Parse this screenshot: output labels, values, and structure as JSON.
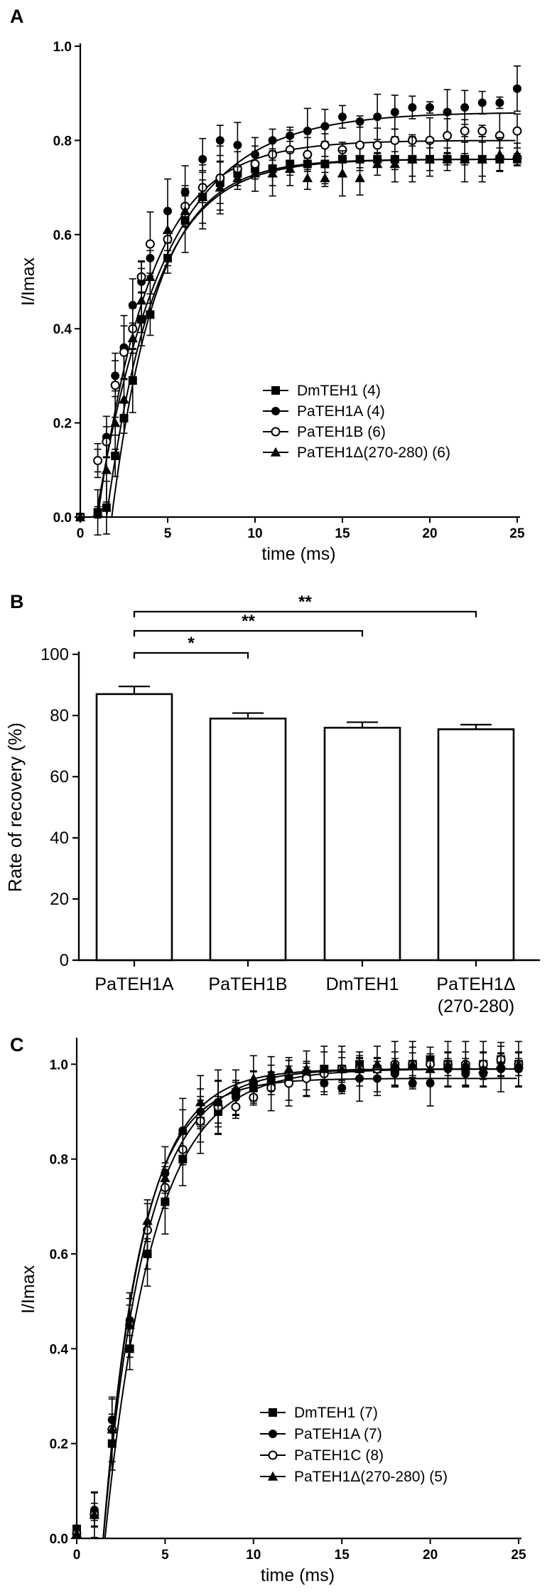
{
  "chart_data": [
    {
      "panel": "A",
      "type": "line",
      "ylabel": "I/Imax",
      "xlabel": "time (ms)",
      "xlim": [
        0,
        25
      ],
      "ylim": [
        0,
        1.0
      ],
      "xticks": [
        0,
        5,
        10,
        15,
        20,
        25
      ],
      "yticks": [
        0.0,
        0.2,
        0.4,
        0.6,
        0.8,
        1.0
      ],
      "ytick_labels": [
        "0.0",
        "0.2",
        "0.4",
        "0.6",
        "0.8",
        "1.0"
      ],
      "legend": "bottom-right",
      "series": [
        {
          "name": "DmTEH1 (4)",
          "marker": "square-filled",
          "x": [
            0,
            1,
            1.5,
            2,
            2.5,
            3,
            3.5,
            4,
            5,
            6,
            7,
            8,
            9,
            10,
            11,
            12,
            13,
            14,
            15,
            16,
            17,
            18,
            19,
            20,
            21,
            22,
            23,
            24,
            25
          ],
          "y": [
            0,
            0.01,
            0.02,
            0.13,
            0.21,
            0.29,
            0.42,
            0.43,
            0.55,
            0.63,
            0.68,
            0.71,
            0.73,
            0.74,
            0.74,
            0.75,
            0.75,
            0.75,
            0.76,
            0.76,
            0.76,
            0.76,
            0.76,
            0.76,
            0.76,
            0.76,
            0.76,
            0.76,
            0.76
          ],
          "fit": {
            "max": 0.76,
            "delay": 1.8,
            "tau": 2.6
          }
        },
        {
          "name": "PaTEH1A (4)",
          "marker": "circle-filled",
          "x": [
            0,
            1,
            1.5,
            2,
            2.5,
            3,
            3.5,
            4,
            5,
            6,
            7,
            8,
            9,
            10,
            11,
            12,
            13,
            14,
            15,
            16,
            17,
            18,
            19,
            20,
            21,
            22,
            23,
            24,
            25
          ],
          "y": [
            0,
            0.12,
            0.17,
            0.3,
            0.36,
            0.45,
            0.5,
            0.55,
            0.65,
            0.69,
            0.76,
            0.8,
            0.79,
            0.77,
            0.8,
            0.81,
            0.82,
            0.83,
            0.85,
            0.84,
            0.85,
            0.86,
            0.87,
            0.87,
            0.86,
            0.87,
            0.88,
            0.88,
            0.91
          ],
          "fit": {
            "max": 0.86,
            "delay": 0.9,
            "tau": 3.9
          }
        },
        {
          "name": "PaTEH1B (6)",
          "marker": "circle-open",
          "x": [
            0,
            1,
            1.5,
            2,
            2.5,
            3,
            3.5,
            4,
            5,
            6,
            7,
            8,
            9,
            10,
            11,
            12,
            13,
            14,
            15,
            16,
            17,
            18,
            19,
            20,
            21,
            22,
            23,
            24,
            25
          ],
          "y": [
            0,
            0.12,
            0.16,
            0.28,
            0.35,
            0.4,
            0.51,
            0.58,
            0.59,
            0.66,
            0.7,
            0.72,
            0.74,
            0.75,
            0.77,
            0.78,
            0.77,
            0.79,
            0.78,
            0.79,
            0.79,
            0.8,
            0.8,
            0.8,
            0.81,
            0.82,
            0.82,
            0.81,
            0.82
          ],
          "fit": {
            "max": 0.8,
            "delay": 1.0,
            "tau": 3.0
          }
        },
        {
          "name": "PaTEH1Δ(270-280) (6)",
          "marker": "triangle-filled",
          "x": [
            0,
            1,
            1.5,
            2,
            2.5,
            3,
            3.5,
            4,
            5,
            6,
            7,
            8,
            9,
            10,
            11,
            12,
            13,
            14,
            15,
            16,
            17,
            18,
            19,
            20,
            21,
            22,
            23,
            24,
            25
          ],
          "y": [
            0,
            0.01,
            0.1,
            0.2,
            0.25,
            0.38,
            0.46,
            0.51,
            0.61,
            0.65,
            0.68,
            0.7,
            0.72,
            0.73,
            0.73,
            0.74,
            0.72,
            0.72,
            0.73,
            0.72,
            0.75,
            0.75,
            0.76,
            0.76,
            0.76,
            0.76,
            0.76,
            0.77,
            0.77
          ],
          "fit": {
            "max": 0.76,
            "delay": 1.5,
            "tau": 2.8
          }
        }
      ]
    },
    {
      "panel": "B",
      "type": "bar",
      "ylabel": "Rate of recovery (%)",
      "ylim": [
        0,
        100
      ],
      "yticks": [
        0,
        20,
        40,
        60,
        80,
        100
      ],
      "categories": [
        [
          "PaTEH1A"
        ],
        [
          "PaTEH1B"
        ],
        [
          "DmTEH1"
        ],
        [
          "PaTEH1Δ",
          "(270-280)"
        ]
      ],
      "values": [
        87,
        79,
        76,
        75.5
      ],
      "errors": [
        2.5,
        1.8,
        1.8,
        1.5
      ],
      "significance": [
        {
          "from": 0,
          "to": 1,
          "label": "*"
        },
        {
          "from": 0,
          "to": 2,
          "label": "**"
        },
        {
          "from": 0,
          "to": 3,
          "label": "**"
        }
      ]
    },
    {
      "panel": "C",
      "type": "line",
      "ylabel": "I/Imax",
      "xlabel": "time (ms)",
      "xlim": [
        0,
        25
      ],
      "ylim": [
        0,
        1.05
      ],
      "xticks": [
        0,
        5,
        10,
        15,
        20,
        25
      ],
      "yticks": [
        0.0,
        0.2,
        0.4,
        0.6,
        0.8,
        1.0
      ],
      "ytick_labels": [
        "0.0",
        "0.2",
        "0.4",
        "0.6",
        "0.8",
        "1.0"
      ],
      "legend": "bottom-right",
      "series": [
        {
          "name": "DmTEH1 (7)",
          "marker": "square-filled",
          "x": [
            0,
            1,
            2,
            3,
            4,
            5,
            6,
            7,
            8,
            9,
            10,
            11,
            12,
            13,
            14,
            15,
            16,
            17,
            18,
            19,
            20,
            21,
            22,
            23,
            24,
            25
          ],
          "y": [
            0.02,
            0.05,
            0.2,
            0.4,
            0.6,
            0.71,
            0.8,
            0.88,
            0.9,
            0.94,
            0.95,
            0.96,
            0.97,
            0.98,
            0.99,
            0.99,
            1.0,
            0.99,
            0.99,
            1.0,
            1.01,
            1.0,
            0.99,
            1.0,
            1.01,
            1.0
          ],
          "fit": {
            "max": 0.99,
            "delay": 1.5,
            "tau": 2.4
          }
        },
        {
          "name": "PaTEH1A (7)",
          "marker": "circle-filled",
          "x": [
            0,
            1,
            2,
            3,
            4,
            5,
            6,
            7,
            8,
            9,
            10,
            11,
            12,
            13,
            14,
            15,
            16,
            17,
            18,
            19,
            20,
            21,
            22,
            23,
            24,
            25
          ],
          "y": [
            0.01,
            0.06,
            0.25,
            0.46,
            0.6,
            0.77,
            0.86,
            0.9,
            0.92,
            0.93,
            0.96,
            0.97,
            0.96,
            0.97,
            0.96,
            0.95,
            0.97,
            0.97,
            0.98,
            0.96,
            0.96,
            0.99,
            0.98,
            0.98,
            0.99,
            0.99
          ],
          "fit": {
            "max": 0.97,
            "delay": 1.5,
            "tau": 2.1
          }
        },
        {
          "name": "PaTEH1C (8)",
          "marker": "circle-open",
          "x": [
            0,
            1,
            2,
            3,
            4,
            5,
            6,
            7,
            8,
            9,
            10,
            11,
            12,
            13,
            14,
            15,
            16,
            17,
            18,
            19,
            20,
            21,
            22,
            23,
            24,
            25
          ],
          "y": [
            0.01,
            0.05,
            0.23,
            0.45,
            0.65,
            0.74,
            0.82,
            0.88,
            0.91,
            0.91,
            0.93,
            0.95,
            0.96,
            0.97,
            0.98,
            0.99,
            0.99,
            0.99,
            1.0,
            1.0,
            1.0,
            1.0,
            1.0,
            1.0,
            1.01,
            1.0
          ],
          "fit": {
            "max": 0.99,
            "delay": 1.6,
            "tau": 2.7
          }
        },
        {
          "name": "PaTEH1Δ(270-280) (5)",
          "marker": "triangle-filled",
          "x": [
            0,
            1,
            2,
            3,
            4,
            5,
            6,
            7,
            8,
            9,
            10,
            11,
            12,
            13,
            14,
            15,
            16,
            17,
            18,
            19,
            20,
            21,
            22,
            23,
            24,
            25
          ],
          "y": [
            0.01,
            0.05,
            0.23,
            0.45,
            0.67,
            0.76,
            0.86,
            0.92,
            0.92,
            0.95,
            0.97,
            0.98,
            0.99,
            0.99,
            0.99,
            0.99,
            0.99,
            1.0,
            1.0,
            1.0,
            0.99,
            1.0,
            1.0,
            0.99,
            1.0,
            1.0
          ],
          "fit": {
            "max": 0.99,
            "delay": 1.5,
            "tau": 2.2
          }
        }
      ]
    }
  ]
}
